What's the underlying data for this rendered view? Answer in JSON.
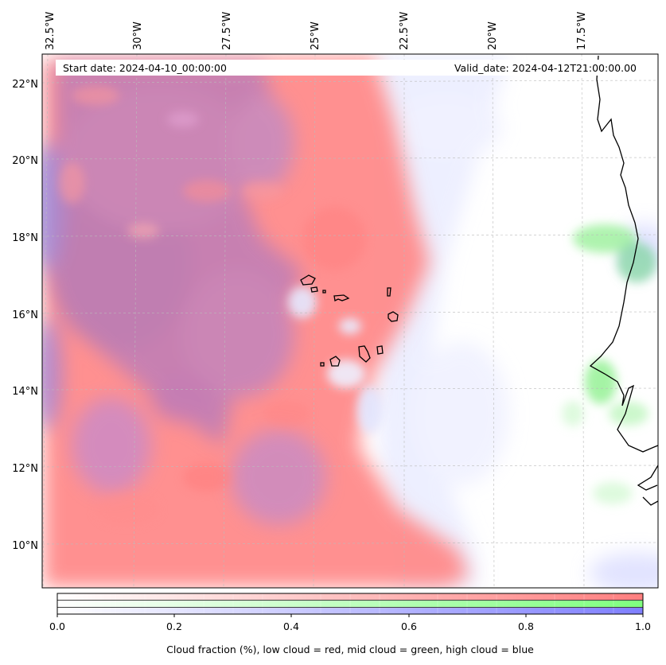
{
  "map": {
    "start_date": "Start date: 2024-04-10_00:00:00",
    "valid_date": "Valid_date: 2024-04-12T21:00:00.00",
    "lon_labels": [
      "32.5°W",
      "30°W",
      "27.5°W",
      "25°W",
      "22.5°W",
      "20°W",
      "17.5°W"
    ],
    "lat_labels": [
      "22°N",
      "20°N",
      "18°N",
      "16°N",
      "14°N",
      "12°N",
      "10°N"
    ],
    "colors": {
      "low_cloud": "#ff7f7f",
      "mid_cloud": "#7fff7f",
      "high_cloud": "#7f7fff",
      "coastline": "#000000",
      "gridline": "#bbbbbb"
    }
  },
  "colorbar": {
    "ticks": [
      "0.0",
      "0.2",
      "0.4",
      "0.6",
      "0.8",
      "1.0"
    ],
    "caption": "Cloud fraction (%), low cloud = red, mid cloud = green, high cloud = blue"
  }
}
